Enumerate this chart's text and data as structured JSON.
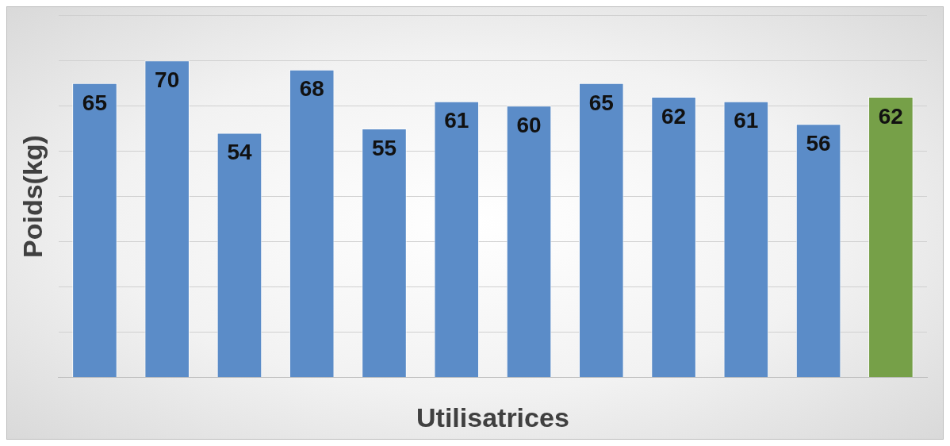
{
  "chart_data": {
    "type": "bar",
    "xlabel": "Utilisatrices",
    "ylabel": "Poids(kg)",
    "categories": [
      null,
      null,
      null,
      null,
      null,
      null,
      null,
      null,
      null,
      null,
      null,
      null
    ],
    "values": [
      65,
      70,
      54,
      68,
      55,
      61,
      60,
      65,
      62,
      61,
      56,
      62
    ],
    "colors": [
      "#5b8cc8",
      "#5b8cc8",
      "#5b8cc8",
      "#5b8cc8",
      "#5b8cc8",
      "#5b8cc8",
      "#5b8cc8",
      "#5b8cc8",
      "#5b8cc8",
      "#5b8cc8",
      "#5b8cc8",
      "#76a048"
    ],
    "ylim": [
      0,
      80
    ],
    "yticks": [
      {
        "value": 0,
        "label": null
      },
      {
        "value": 10,
        "label": null
      },
      {
        "value": 20,
        "label": null
      },
      {
        "value": 30,
        "label": null
      },
      {
        "value": 40,
        "label": null
      },
      {
        "value": 50,
        "label": null
      },
      {
        "value": 60,
        "label": null
      },
      {
        "value": 70,
        "label": null
      },
      {
        "value": 80,
        "label": null
      }
    ],
    "grid": "y",
    "data_labels": true,
    "legend": false
  }
}
